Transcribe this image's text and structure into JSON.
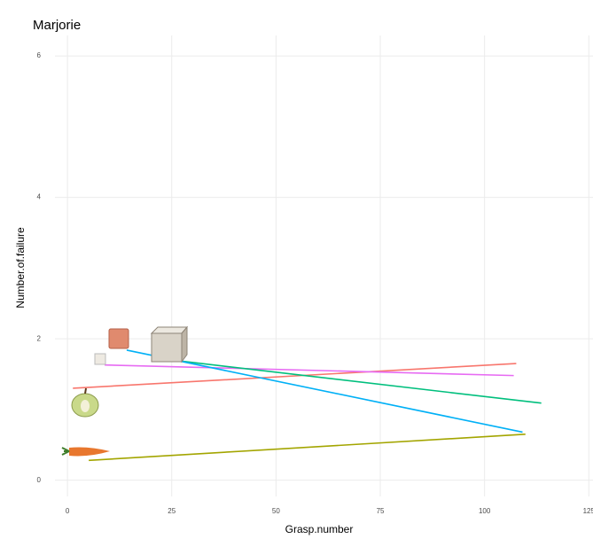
{
  "chart_data": {
    "type": "line",
    "title": "Marjorie",
    "x_label": "Grasp.number",
    "y_label": "Number.of.failure",
    "series": [
      {
        "color": "#f8766d",
        "x": [
          1.3,
          107.6
        ],
        "values": [
          1.3,
          1.65
        ]
      },
      {
        "color": "#e76bf3",
        "x": [
          8.9,
          107
        ],
        "values": [
          1.63,
          1.48
        ]
      },
      {
        "color": "#00bf7d",
        "x": [
          22,
          113.6
        ],
        "values": [
          1.72,
          1.09
        ]
      },
      {
        "color": "#00b0f6",
        "x": [
          14.2,
          109.1
        ],
        "values": [
          1.84,
          0.68
        ]
      },
      {
        "color": "#a3a500",
        "x": [
          5.1,
          109.8
        ],
        "values": [
          0.28,
          0.65
        ]
      }
    ],
    "xlim": [
      -3,
      126
    ],
    "ylim": [
      -0.23,
      6.29
    ],
    "xticks": [
      0,
      25,
      50,
      75,
      100,
      125
    ],
    "yticks": [
      0,
      2,
      4,
      6
    ],
    "grid": true
  }
}
